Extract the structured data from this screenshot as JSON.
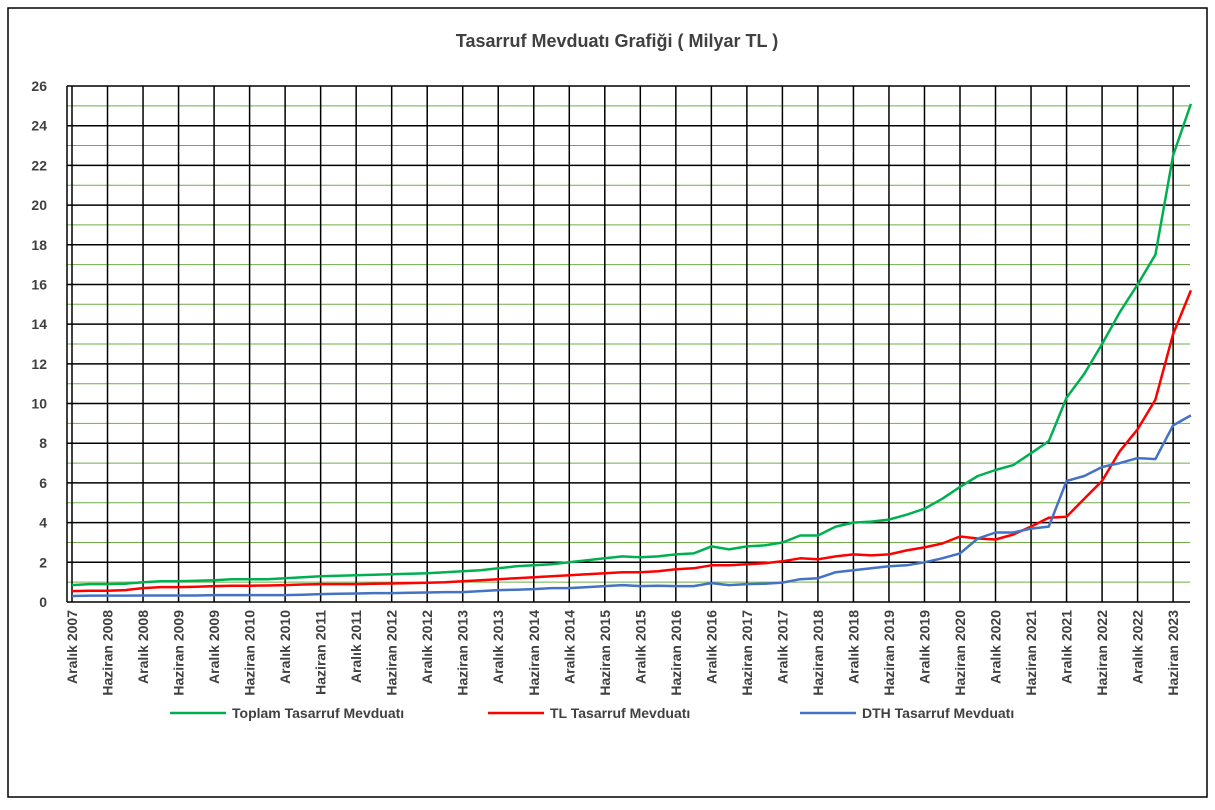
{
  "chart_data": {
    "type": "line",
    "title": "Tasarruf Mevduatı Grafiği ( Milyar TL )",
    "categories": [
      "Aralık 2007",
      null,
      "Haziran 2008",
      null,
      "Aralık 2008",
      null,
      "Haziran 2009",
      null,
      "Aralık 2009",
      null,
      "Haziran 2010",
      null,
      "Aralık 2010",
      null,
      "Haziran 2011",
      null,
      "Aralık 2011",
      null,
      "Haziran 2012",
      null,
      "Aralık 2012",
      null,
      "Haziran 2013",
      null,
      "Aralık 2013",
      null,
      "Haziran 2014",
      null,
      "Aralık 2014",
      null,
      "Haziran 2015",
      null,
      "Aralık 2015",
      null,
      "Haziran 2016",
      null,
      "Aralık 2016",
      null,
      "Haziran 2017",
      null,
      "Aralık 2017",
      null,
      "Haziran 2018",
      null,
      "Aralık 2018",
      null,
      "Haziran 2019",
      null,
      "Aralık 2019",
      null,
      "Haziran 2020",
      null,
      "Aralık 2020",
      null,
      "Haziran 2021",
      null,
      "Aralık 2021",
      null,
      "Haziran 2022",
      null,
      "Aralık 2022",
      null,
      "Haziran 2023",
      null
    ],
    "series": [
      {
        "name": "Toplam Tasarruf Mevduatı",
        "color": "#00b050",
        "values": [
          0.85,
          0.9,
          0.9,
          0.92,
          1.0,
          1.05,
          1.05,
          1.07,
          1.1,
          1.15,
          1.15,
          1.15,
          1.2,
          1.25,
          1.3,
          1.32,
          1.35,
          1.37,
          1.4,
          1.42,
          1.45,
          1.5,
          1.55,
          1.6,
          1.7,
          1.8,
          1.85,
          1.9,
          2.0,
          2.1,
          2.2,
          2.3,
          2.25,
          2.3,
          2.4,
          2.45,
          2.8,
          2.65,
          2.8,
          2.85,
          3.0,
          3.35,
          3.35,
          3.8,
          4.0,
          4.05,
          4.15,
          4.4,
          4.7,
          5.2,
          5.8,
          6.35,
          6.65,
          6.9,
          7.5,
          8.1,
          10.3,
          11.5,
          13.0,
          14.6,
          16.0,
          17.5,
          22.5,
          25.1
        ]
      },
      {
        "name": "TL Tasarruf Mevduatı",
        "color": "#ff0000",
        "values": [
          0.55,
          0.57,
          0.57,
          0.6,
          0.7,
          0.75,
          0.75,
          0.77,
          0.8,
          0.82,
          0.82,
          0.83,
          0.85,
          0.88,
          0.9,
          0.9,
          0.9,
          0.92,
          0.93,
          0.95,
          0.97,
          1.0,
          1.05,
          1.1,
          1.15,
          1.2,
          1.25,
          1.3,
          1.35,
          1.4,
          1.45,
          1.5,
          1.5,
          1.55,
          1.65,
          1.7,
          1.85,
          1.85,
          1.9,
          1.95,
          2.05,
          2.2,
          2.15,
          2.3,
          2.4,
          2.35,
          2.4,
          2.6,
          2.75,
          2.95,
          3.3,
          3.2,
          3.15,
          3.4,
          3.8,
          4.25,
          4.3,
          5.2,
          6.1,
          7.6,
          8.7,
          10.2,
          13.5,
          15.7
        ]
      },
      {
        "name": "DTH Tasarruf Mevduatı",
        "color": "#4472c4",
        "values": [
          0.3,
          0.32,
          0.32,
          0.32,
          0.33,
          0.33,
          0.33,
          0.33,
          0.35,
          0.35,
          0.35,
          0.35,
          0.35,
          0.37,
          0.4,
          0.42,
          0.43,
          0.45,
          0.45,
          0.47,
          0.48,
          0.5,
          0.5,
          0.55,
          0.6,
          0.62,
          0.65,
          0.7,
          0.7,
          0.75,
          0.8,
          0.85,
          0.8,
          0.82,
          0.8,
          0.8,
          0.95,
          0.85,
          0.9,
          0.92,
          0.98,
          1.15,
          1.2,
          1.5,
          1.6,
          1.7,
          1.8,
          1.85,
          2.0,
          2.2,
          2.45,
          3.2,
          3.5,
          3.5,
          3.7,
          3.8,
          6.1,
          6.35,
          6.8,
          7.0,
          7.25,
          7.2,
          8.9,
          9.4
        ]
      }
    ],
    "ylim": [
      0,
      26
    ],
    "yticks": [
      0,
      2,
      4,
      6,
      8,
      10,
      12,
      14,
      16,
      18,
      20,
      22,
      24,
      26
    ],
    "minor_yticks": [
      1,
      3,
      5,
      7,
      9,
      11,
      13,
      15,
      17,
      19,
      21,
      23,
      25
    ],
    "grid": true,
    "legend": "bottom"
  }
}
